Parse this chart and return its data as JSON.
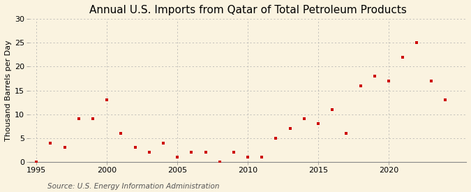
{
  "title": "Annual U.S. Imports from Qatar of Total Petroleum Products",
  "ylabel": "Thousand Barrels per Day",
  "source": "Source: U.S. Energy Information Administration",
  "background_color": "#faf3e0",
  "marker_color": "#cc0000",
  "years": [
    1995,
    1996,
    1997,
    1998,
    1999,
    2000,
    2001,
    2002,
    2003,
    2004,
    2005,
    2006,
    2007,
    2008,
    2009,
    2010,
    2011,
    2012,
    2013,
    2014,
    2015,
    2016,
    2017,
    2018,
    2019,
    2020,
    2021,
    2022,
    2023,
    2024
  ],
  "values": [
    0,
    4,
    3,
    9,
    9,
    13,
    6,
    3,
    2,
    4,
    1,
    2,
    2,
    0,
    2,
    1,
    1,
    5,
    7,
    9,
    8,
    11,
    6,
    16,
    18,
    17,
    22,
    25,
    17,
    13
  ],
  "xlim": [
    1994.5,
    2025.5
  ],
  "ylim": [
    0,
    30
  ],
  "yticks": [
    0,
    5,
    10,
    15,
    20,
    25,
    30
  ],
  "xticks": [
    1995,
    2000,
    2005,
    2010,
    2015,
    2020
  ],
  "grid_color": "#aaaaaa",
  "title_fontsize": 11,
  "label_fontsize": 8,
  "tick_fontsize": 8,
  "source_fontsize": 7.5
}
